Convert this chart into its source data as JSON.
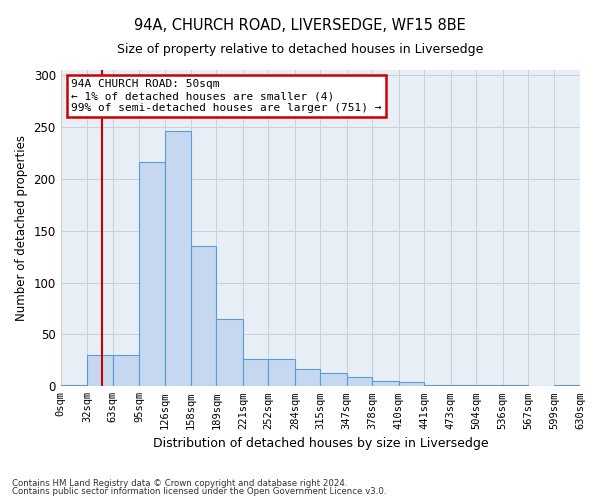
{
  "title1": "94A, CHURCH ROAD, LIVERSEDGE, WF15 8BE",
  "title2": "Size of property relative to detached houses in Liversedge",
  "xlabel": "Distribution of detached houses by size in Liversedge",
  "ylabel": "Number of detached properties",
  "footnote1": "Contains HM Land Registry data © Crown copyright and database right 2024.",
  "footnote2": "Contains public sector information licensed under the Open Government Licence v3.0.",
  "bin_edges": [
    0,
    32,
    63,
    95,
    126,
    158,
    189,
    221,
    252,
    284,
    315,
    347,
    378,
    410,
    441,
    473,
    504,
    536,
    567,
    599,
    630
  ],
  "bar_heights": [
    1,
    30,
    30,
    216,
    246,
    135,
    65,
    26,
    26,
    17,
    13,
    9,
    5,
    4,
    1,
    1,
    1,
    1,
    0,
    1
  ],
  "bar_color": "#c5d8f0",
  "bar_edge_color": "#5b9bd5",
  "property_size": 50,
  "annotation_text": "94A CHURCH ROAD: 50sqm\n← 1% of detached houses are smaller (4)\n99% of semi-detached houses are larger (751) →",
  "annotation_box_color": "#ffffff",
  "annotation_box_edge_color": "#cc0000",
  "vline_color": "#cc0000",
  "ylim": [
    0,
    305
  ],
  "yticks": [
    0,
    50,
    100,
    150,
    200,
    250,
    300
  ],
  "grid_color": "#c8d0dc",
  "background_color": "#e8eef6"
}
